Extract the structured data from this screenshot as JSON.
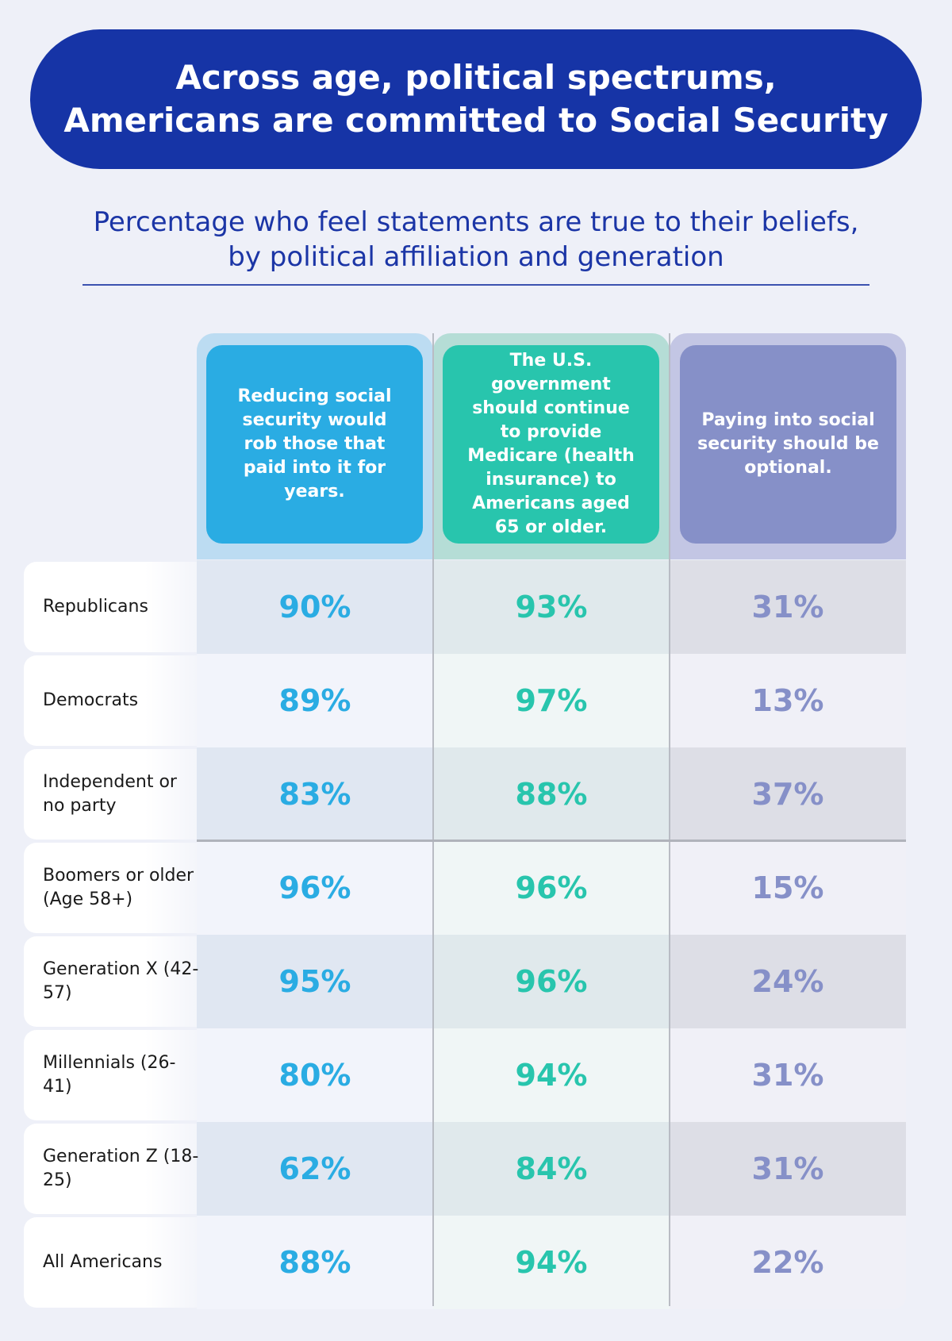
{
  "title_lines": [
    "Across age, political spectrums,",
    "Americans are committed to Social Security"
  ],
  "subtitle_lines": [
    "Percentage who feel statements are true to their beliefs,",
    "by political affiliation and generation"
  ],
  "colors": {
    "title_bg": "#1634a6",
    "col1": "#2aace3",
    "col2": "#28c5ad",
    "col3": "#8690c8"
  },
  "chart_data": {
    "type": "table",
    "title": "Across age, political spectrums, Americans are committed to Social Security",
    "subtitle": "Percentage who feel statements are true to their beliefs, by political affiliation and generation",
    "columns": [
      "Reducing social security would rob those that paid into it for years.",
      "The U.S. government should continue to provide Medicare (health insurance) to Americans aged 65 or older.",
      "Paying into social security should be optional."
    ],
    "rows": [
      {
        "label": "Republicans",
        "values": [
          "90%",
          "93%",
          "31%"
        ]
      },
      {
        "label": "Democrats",
        "values": [
          "89%",
          "97%",
          "13%"
        ]
      },
      {
        "label": "Independent or no party",
        "values": [
          "83%",
          "88%",
          "37%"
        ]
      },
      {
        "label": "Boomers or older (Age 58+)",
        "values": [
          "96%",
          "96%",
          "15%"
        ]
      },
      {
        "label": "Generation X (42-57)",
        "values": [
          "95%",
          "96%",
          "24%"
        ]
      },
      {
        "label": "Millennials (26-41)",
        "values": [
          "80%",
          "94%",
          "31%"
        ]
      },
      {
        "label": "Generation Z (18-25)",
        "values": [
          "62%",
          "84%",
          "31%"
        ]
      },
      {
        "label": "All Americans",
        "values": [
          "88%",
          "94%",
          "22%"
        ]
      }
    ]
  }
}
